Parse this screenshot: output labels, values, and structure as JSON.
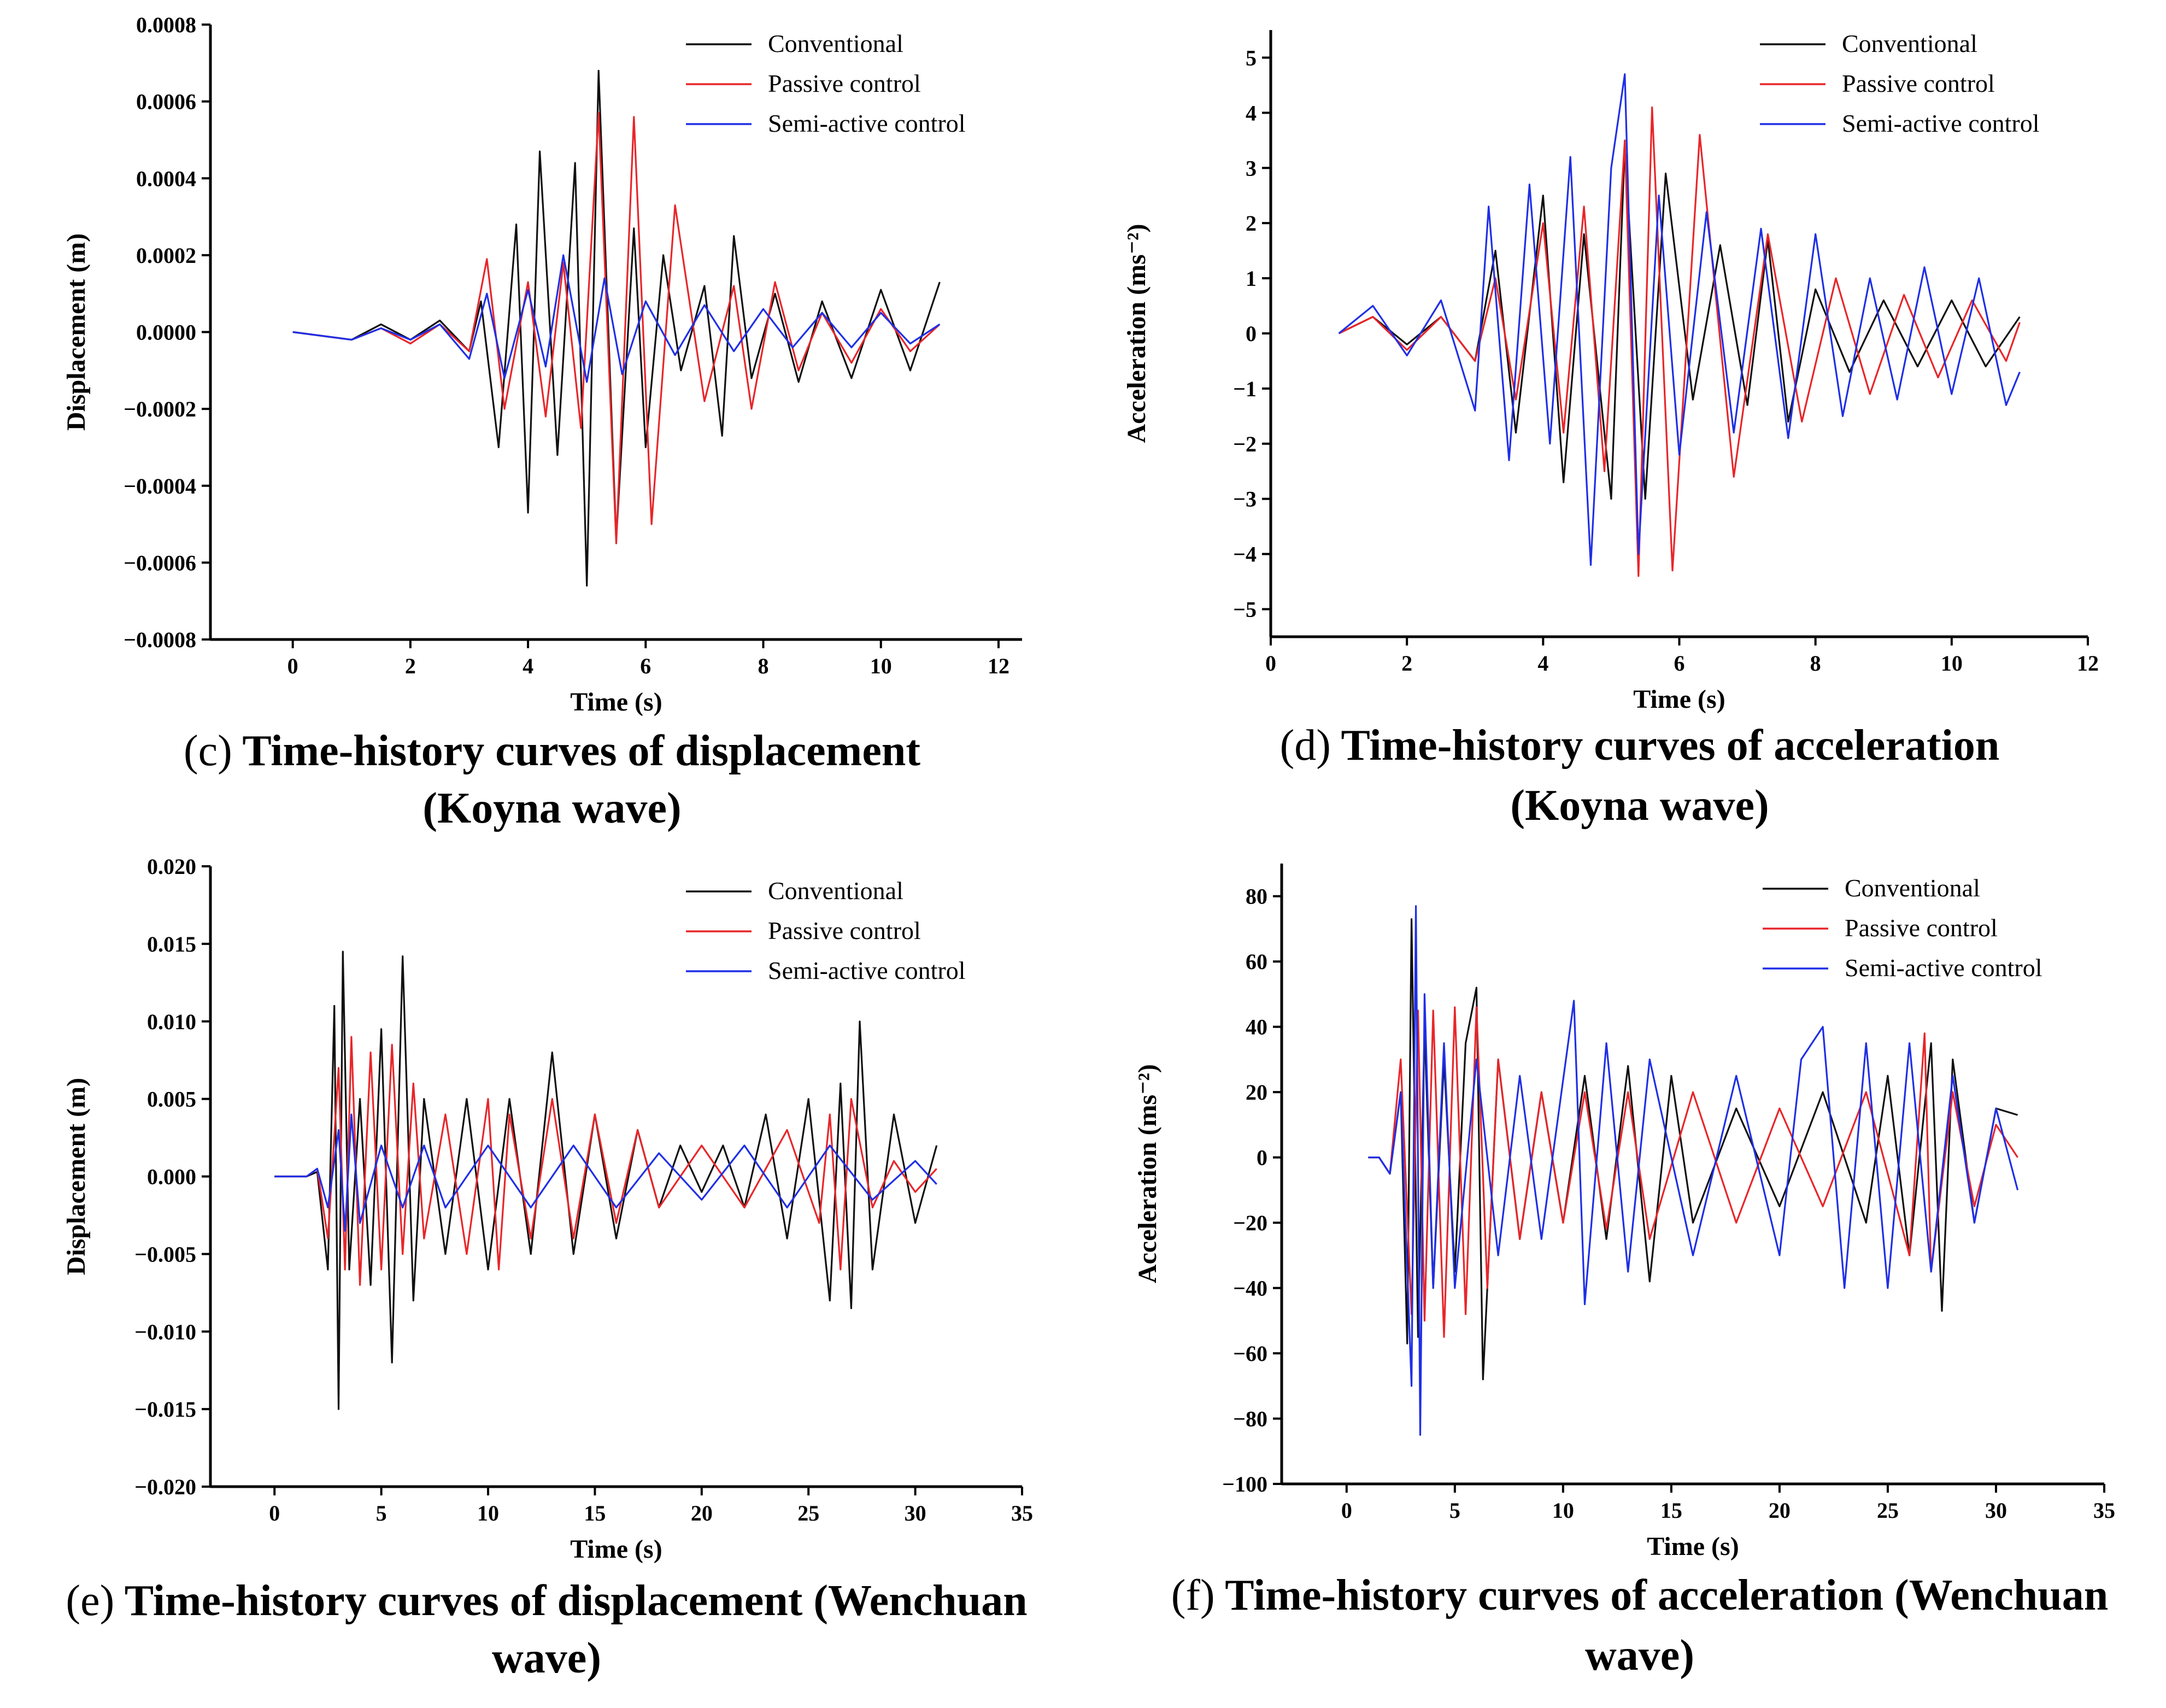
{
  "chart_data": [
    {
      "id": "c",
      "type": "line",
      "caption_letter": "(c)",
      "caption_lines": [
        "Time-history curves of displacement",
        "(Koyna wave)"
      ],
      "xlabel": "Time (s)",
      "ylabel": "Displacement (m)",
      "xlim": [
        -1.4,
        12.4
      ],
      "ylim": [
        -0.0008,
        0.0008
      ],
      "xticks": [
        0,
        2,
        4,
        6,
        8,
        10,
        12
      ],
      "xtick_labels": [
        "0",
        "2",
        "4",
        "6",
        "8",
        "10",
        "12"
      ],
      "yticks": [
        -0.0008,
        -0.0006,
        -0.0004,
        -0.0002,
        0,
        0.0002,
        0.0004,
        0.0006,
        0.0008
      ],
      "ytick_labels": [
        "−0.0008",
        "−0.0006",
        "−0.0004",
        "−0.0002",
        "0.0000",
        "0.0002",
        "0.0004",
        "0.0006",
        "0.0008"
      ],
      "legend_position": "top-right",
      "series": [
        {
          "name": "Conventional",
          "color": "#111111",
          "x": [
            0,
            1,
            1.5,
            2,
            2.5,
            3,
            3.2,
            3.5,
            3.8,
            4.0,
            4.2,
            4.5,
            4.8,
            5.0,
            5.2,
            5.5,
            5.8,
            6.0,
            6.3,
            6.6,
            7.0,
            7.3,
            7.5,
            7.8,
            8.2,
            8.6,
            9.0,
            9.5,
            10.0,
            10.5,
            11.0
          ],
          "values": [
            0,
            -2e-05,
            2e-05,
            -2e-05,
            3e-05,
            -5e-05,
            8e-05,
            -0.0003,
            0.00028,
            -0.00047,
            0.00047,
            -0.00032,
            0.00044,
            -0.00066,
            0.00068,
            -0.00054,
            0.00027,
            -0.0003,
            0.0002,
            -0.0001,
            0.00012,
            -0.00027,
            0.00025,
            -0.00012,
            0.0001,
            -0.00013,
            8e-05,
            -0.00012,
            0.00011,
            -0.0001,
            0.00013
          ]
        },
        {
          "name": "Passive control",
          "color": "#e8262a",
          "x": [
            0,
            1,
            1.5,
            2,
            2.5,
            3,
            3.3,
            3.6,
            4.0,
            4.3,
            4.6,
            4.9,
            5.2,
            5.5,
            5.8,
            6.1,
            6.5,
            7.0,
            7.5,
            7.8,
            8.2,
            8.6,
            9.0,
            9.5,
            10.0,
            10.5,
            11.0
          ],
          "values": [
            0,
            -2e-05,
            1e-05,
            -3e-05,
            2e-05,
            -5e-05,
            0.00019,
            -0.0002,
            0.00013,
            -0.00022,
            0.00018,
            -0.00025,
            0.00057,
            -0.00055,
            0.00056,
            -0.0005,
            0.00033,
            -0.00018,
            0.00012,
            -0.0002,
            0.00013,
            -0.0001,
            5e-05,
            -8e-05,
            6e-05,
            -5e-05,
            2e-05
          ]
        },
        {
          "name": "Semi-active control",
          "color": "#1f2fe6",
          "x": [
            0,
            1,
            1.5,
            2,
            2.5,
            3,
            3.3,
            3.6,
            4.0,
            4.3,
            4.6,
            5.0,
            5.3,
            5.6,
            6.0,
            6.5,
            7.0,
            7.5,
            8.0,
            8.5,
            9.0,
            9.5,
            10.0,
            10.5,
            11.0
          ],
          "values": [
            0,
            -2e-05,
            1e-05,
            -2e-05,
            2e-05,
            -7e-05,
            0.0001,
            -0.00012,
            0.00011,
            -9e-05,
            0.0002,
            -0.00013,
            0.00014,
            -0.00011,
            8e-05,
            -6e-05,
            7e-05,
            -5e-05,
            6e-05,
            -4e-05,
            5e-05,
            -4e-05,
            5e-05,
            -3e-05,
            2e-05
          ]
        }
      ]
    },
    {
      "id": "d",
      "type": "line",
      "caption_letter": "(d)",
      "caption_lines": [
        "Time-history curves of acceleration",
        "(Koyna wave)"
      ],
      "xlabel": "Time (s)",
      "ylabel": "Acceleration  (ms⁻²)",
      "xlim": [
        0,
        12
      ],
      "ylim": [
        -5.5,
        5.5
      ],
      "xticks": [
        0,
        2,
        4,
        6,
        8,
        10,
        12
      ],
      "xtick_labels": [
        "0",
        "2",
        "4",
        "6",
        "8",
        "10",
        "12"
      ],
      "yticks": [
        -5,
        -4,
        -3,
        -2,
        -1,
        0,
        1,
        2,
        3,
        4,
        5
      ],
      "ytick_labels": [
        "−5",
        "−4",
        "−3",
        "−2",
        "−1",
        "0",
        "1",
        "2",
        "3",
        "4",
        "5"
      ],
      "legend_position": "top-right",
      "series": [
        {
          "name": "Conventional",
          "color": "#111111",
          "x": [
            1,
            1.5,
            2,
            2.5,
            3,
            3.3,
            3.6,
            4.0,
            4.3,
            4.6,
            5.0,
            5.2,
            5.5,
            5.8,
            6.2,
            6.6,
            7.0,
            7.3,
            7.6,
            8.0,
            8.5,
            9.0,
            9.5,
            10.0,
            10.5,
            11.0
          ],
          "values": [
            0,
            0.3,
            -0.2,
            0.3,
            -0.5,
            1.5,
            -1.8,
            2.5,
            -2.7,
            1.8,
            -3.0,
            3.4,
            -3.0,
            2.9,
            -1.2,
            1.6,
            -1.3,
            1.7,
            -1.6,
            0.8,
            -0.7,
            0.6,
            -0.6,
            0.6,
            -0.6,
            0.3
          ]
        },
        {
          "name": "Passive control",
          "color": "#e8262a",
          "x": [
            1,
            1.5,
            2,
            2.5,
            3,
            3.3,
            3.6,
            4.0,
            4.3,
            4.6,
            4.9,
            5.2,
            5.4,
            5.6,
            5.9,
            6.3,
            6.8,
            7.3,
            7.8,
            8.3,
            8.8,
            9.3,
            9.8,
            10.3,
            10.8,
            11.0
          ],
          "values": [
            0,
            0.3,
            -0.3,
            0.3,
            -0.5,
            1.0,
            -1.2,
            2.0,
            -1.8,
            2.3,
            -2.5,
            3.5,
            -4.4,
            4.1,
            -4.3,
            3.6,
            -2.6,
            1.8,
            -1.6,
            1.0,
            -1.1,
            0.7,
            -0.8,
            0.6,
            -0.5,
            0.2
          ]
        },
        {
          "name": "Semi-active control",
          "color": "#1f2fe6",
          "x": [
            1,
            1.5,
            2,
            2.5,
            3,
            3.2,
            3.5,
            3.8,
            4.1,
            4.4,
            4.7,
            5.0,
            5.2,
            5.4,
            5.7,
            6.0,
            6.4,
            6.8,
            7.2,
            7.6,
            8.0,
            8.4,
            8.8,
            9.2,
            9.6,
            10.0,
            10.4,
            10.8,
            11.0
          ],
          "values": [
            0,
            0.5,
            -0.4,
            0.6,
            -1.4,
            2.3,
            -2.3,
            2.7,
            -2.0,
            3.2,
            -4.2,
            3.0,
            4.7,
            -4.0,
            2.5,
            -2.2,
            2.2,
            -1.8,
            1.9,
            -1.9,
            1.8,
            -1.5,
            1.0,
            -1.2,
            1.2,
            -1.1,
            1.0,
            -1.3,
            -0.7
          ]
        }
      ]
    },
    {
      "id": "e",
      "type": "line",
      "caption_letter": "(e)",
      "caption_lines": [
        "Time-history curves of displacement (Wenchuan",
        "wave)"
      ],
      "xlabel": "Time (s)",
      "ylabel": "Displacement  (m)",
      "xlim": [
        -3,
        35
      ],
      "ylim": [
        -0.02,
        0.02
      ],
      "xticks": [
        0,
        5,
        10,
        15,
        20,
        25,
        30,
        35
      ],
      "xtick_labels": [
        "0",
        "5",
        "10",
        "15",
        "20",
        "25",
        "30",
        "35"
      ],
      "yticks": [
        -0.02,
        -0.015,
        -0.01,
        -0.005,
        0,
        0.005,
        0.01,
        0.015,
        0.02
      ],
      "ytick_labels": [
        "−0.020",
        "−0.015",
        "−0.010",
        "−0.005",
        "0.000",
        "0.005",
        "0.010",
        "0.015",
        "0.020"
      ],
      "legend_position": "top-right",
      "series": [
        {
          "name": "Conventional",
          "color": "#111111",
          "x": [
            0,
            1.5,
            2.0,
            2.5,
            2.8,
            3.0,
            3.2,
            3.5,
            4.0,
            4.5,
            5.0,
            5.5,
            6.0,
            6.5,
            7.0,
            8.0,
            9.0,
            10.0,
            11.0,
            12.0,
            13.0,
            14.0,
            15.0,
            16.0,
            17.0,
            18.0,
            19.0,
            20.0,
            21.0,
            22.0,
            23.0,
            24.0,
            25.0,
            26.0,
            26.5,
            27.0,
            27.4,
            28.0,
            29.0,
            30.0,
            31.0
          ],
          "values": [
            0,
            0,
            0.0003,
            -0.006,
            0.011,
            -0.015,
            0.0145,
            -0.006,
            0.005,
            -0.007,
            0.0095,
            -0.012,
            0.0142,
            -0.008,
            0.005,
            -0.005,
            0.005,
            -0.006,
            0.005,
            -0.005,
            0.008,
            -0.005,
            0.004,
            -0.004,
            0.003,
            -0.002,
            0.002,
            -0.001,
            0.002,
            -0.002,
            0.004,
            -0.004,
            0.005,
            -0.008,
            0.006,
            -0.0085,
            0.01,
            -0.006,
            0.004,
            -0.003,
            0.002
          ]
        },
        {
          "name": "Passive control",
          "color": "#e8262a",
          "x": [
            0,
            1.5,
            2.0,
            2.5,
            3.0,
            3.3,
            3.6,
            4.0,
            4.5,
            5.0,
            5.5,
            6.0,
            6.5,
            7.0,
            8.0,
            9.0,
            10.0,
            10.5,
            11.0,
            12.0,
            13.0,
            14.0,
            15.0,
            16.0,
            17.0,
            18.0,
            20.0,
            22.0,
            24.0,
            25.5,
            26.0,
            26.5,
            27.0,
            28.0,
            29.0,
            30.0,
            31.0
          ],
          "values": [
            0,
            0,
            0.0005,
            -0.004,
            0.007,
            -0.006,
            0.009,
            -0.007,
            0.008,
            -0.006,
            0.0085,
            -0.005,
            0.006,
            -0.004,
            0.004,
            -0.005,
            0.005,
            -0.006,
            0.004,
            -0.004,
            0.005,
            -0.004,
            0.004,
            -0.003,
            0.003,
            -0.002,
            0.002,
            -0.002,
            0.003,
            -0.003,
            0.004,
            -0.006,
            0.005,
            -0.002,
            0.001,
            -0.001,
            0.0005
          ]
        },
        {
          "name": "Semi-active control",
          "color": "#1f2fe6",
          "x": [
            0,
            1.5,
            2.0,
            2.5,
            3.0,
            3.3,
            3.6,
            4.0,
            5.0,
            6.0,
            7.0,
            8.0,
            10.0,
            12.0,
            14.0,
            16.0,
            18.0,
            20.0,
            22.0,
            24.0,
            26.0,
            28.0,
            30.0,
            31.0
          ],
          "values": [
            0,
            0,
            0.0005,
            -0.002,
            0.003,
            -0.0035,
            0.004,
            -0.003,
            0.002,
            -0.002,
            0.002,
            -0.002,
            0.002,
            -0.002,
            0.002,
            -0.002,
            0.0015,
            -0.0015,
            0.002,
            -0.002,
            0.002,
            -0.0015,
            0.001,
            -0.0005
          ]
        }
      ]
    },
    {
      "id": "f",
      "type": "line",
      "caption_letter": "(f)",
      "caption_lines": [
        "Time-history curves of acceleration (Wenchuan",
        "wave)"
      ],
      "xlabel": "Time (s)",
      "ylabel": "Acceleration (ms⁻²)",
      "xlim": [
        -3,
        35
      ],
      "ylim": [
        -100,
        90
      ],
      "xticks": [
        0,
        5,
        10,
        15,
        20,
        25,
        30,
        35
      ],
      "xtick_labels": [
        "0",
        "5",
        "10",
        "15",
        "20",
        "25",
        "30",
        "35"
      ],
      "yticks": [
        -100,
        -80,
        -60,
        -40,
        -20,
        0,
        20,
        40,
        60,
        80
      ],
      "ytick_labels": [
        "−100",
        "−80",
        "−60",
        "−40",
        "−20",
        "0",
        "20",
        "40",
        "60",
        "80"
      ],
      "legend_position": "top-right",
      "series": [
        {
          "name": "Conventional",
          "color": "#111111",
          "x": [
            1,
            1.5,
            2.0,
            2.5,
            2.8,
            3.0,
            3.3,
            3.6,
            4.0,
            4.5,
            5.0,
            5.5,
            6.0,
            6.3,
            7.0,
            8.0,
            9.0,
            10.0,
            11.0,
            12.0,
            13.0,
            14.0,
            15.0,
            16.0,
            18.0,
            20.0,
            22.0,
            24.0,
            25.0,
            26.0,
            27.0,
            27.5,
            28.0,
            29.0,
            30.0,
            31.0
          ],
          "values": [
            0,
            0,
            -5,
            20,
            -57,
            73,
            -55,
            40,
            -40,
            30,
            -35,
            35,
            52,
            -68,
            30,
            -25,
            20,
            -20,
            25,
            -25,
            28,
            -38,
            25,
            -20,
            15,
            -15,
            20,
            -20,
            25,
            -30,
            35,
            -47,
            30,
            -20,
            15,
            13
          ]
        },
        {
          "name": "Passive control",
          "color": "#e8262a",
          "x": [
            1,
            1.5,
            2.0,
            2.5,
            3.0,
            3.3,
            3.6,
            4.0,
            4.5,
            5.0,
            5.5,
            6.0,
            6.5,
            7.0,
            8.0,
            9.0,
            10.0,
            11.0,
            12.0,
            13.0,
            14.0,
            16.0,
            18.0,
            20.0,
            22.0,
            24.0,
            26.0,
            26.7,
            27.0,
            28.0,
            29.0,
            30.0,
            31.0
          ],
          "values": [
            0,
            0,
            -5,
            30,
            -48,
            45,
            -50,
            45,
            -55,
            46,
            -48,
            46,
            -40,
            30,
            -25,
            20,
            -20,
            20,
            -22,
            20,
            -25,
            20,
            -20,
            15,
            -15,
            20,
            -30,
            38,
            -35,
            20,
            -15,
            10,
            0
          ]
        },
        {
          "name": "Semi-active control",
          "color": "#1f2fe6",
          "x": [
            1,
            1.5,
            2.0,
            2.5,
            3.0,
            3.2,
            3.4,
            3.6,
            4.0,
            4.5,
            5.0,
            6.0,
            7.0,
            8.0,
            9.0,
            10.5,
            11.0,
            12.0,
            13.0,
            14.0,
            16.0,
            18.0,
            20.0,
            21.0,
            22.0,
            23.0,
            24.0,
            25.0,
            26.0,
            27.0,
            28.0,
            29.0,
            30.0,
            31.0
          ],
          "values": [
            0,
            0,
            -5,
            20,
            -70,
            77,
            -85,
            50,
            -40,
            35,
            -40,
            30,
            -30,
            25,
            -25,
            48,
            -45,
            35,
            -35,
            30,
            -30,
            25,
            -30,
            30,
            40,
            -40,
            35,
            -40,
            35,
            -35,
            25,
            -20,
            15,
            -10
          ]
        }
      ]
    }
  ]
}
